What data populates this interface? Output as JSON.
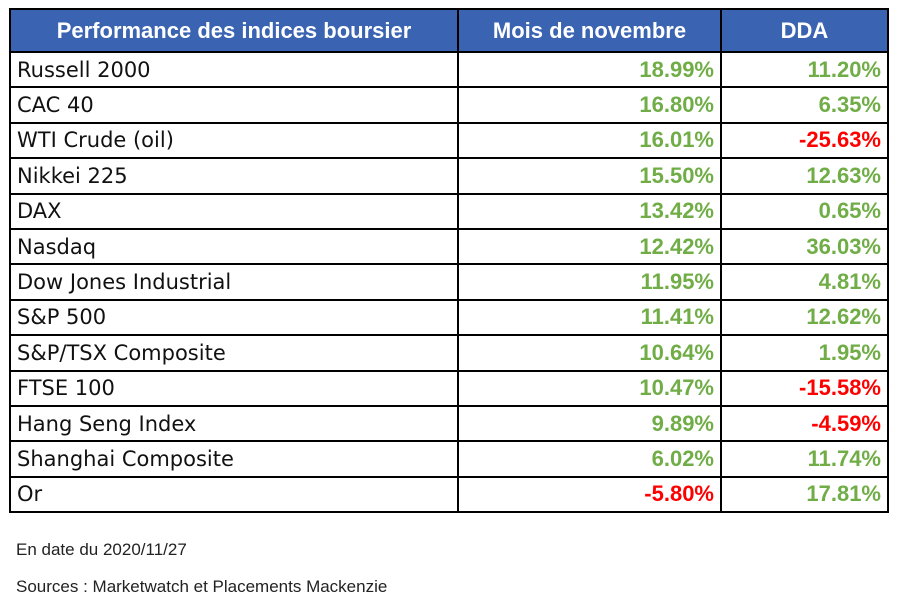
{
  "table": {
    "headers": {
      "index": "Performance des indices boursier",
      "month": "Mois de novembre",
      "ytd": "DDA"
    },
    "rows": [
      {
        "name": "Russell 2000",
        "month": "18.99%",
        "ytd": "11.20%"
      },
      {
        "name": "CAC 40",
        "month": "16.80%",
        "ytd": "6.35%"
      },
      {
        "name": "WTI Crude (oil)",
        "month": "16.01%",
        "ytd": "-25.63%"
      },
      {
        "name": "Nikkei 225",
        "month": "15.50%",
        "ytd": "12.63%"
      },
      {
        "name": "DAX",
        "month": "13.42%",
        "ytd": "0.65%"
      },
      {
        "name": "Nasdaq",
        "month": "12.42%",
        "ytd": "36.03%"
      },
      {
        "name": "Dow Jones Industrial",
        "month": "11.95%",
        "ytd": "4.81%"
      },
      {
        "name": "S&P 500",
        "month": "11.41%",
        "ytd": "12.62%"
      },
      {
        "name": "S&P/TSX Composite",
        "month": "10.64%",
        "ytd": "1.95%"
      },
      {
        "name": "FTSE 100",
        "month": "10.47%",
        "ytd": "-15.58%"
      },
      {
        "name": "Hang Seng Index",
        "month": "9.89%",
        "ytd": "-4.59%"
      },
      {
        "name": "Shanghai Composite",
        "month": "6.02%",
        "ytd": "11.74%"
      },
      {
        "name": "Or",
        "month": "-5.80%",
        "ytd": "17.81%"
      }
    ]
  },
  "footnotes": {
    "date": "En date du 2020/11/27",
    "sources": "Sources : Marketwatch et Placements Mackenzie"
  },
  "colors": {
    "header_bg": "#3a64b2",
    "header_text": "#ffffff",
    "positive": "#70ad47",
    "negative": "#ff0000"
  }
}
